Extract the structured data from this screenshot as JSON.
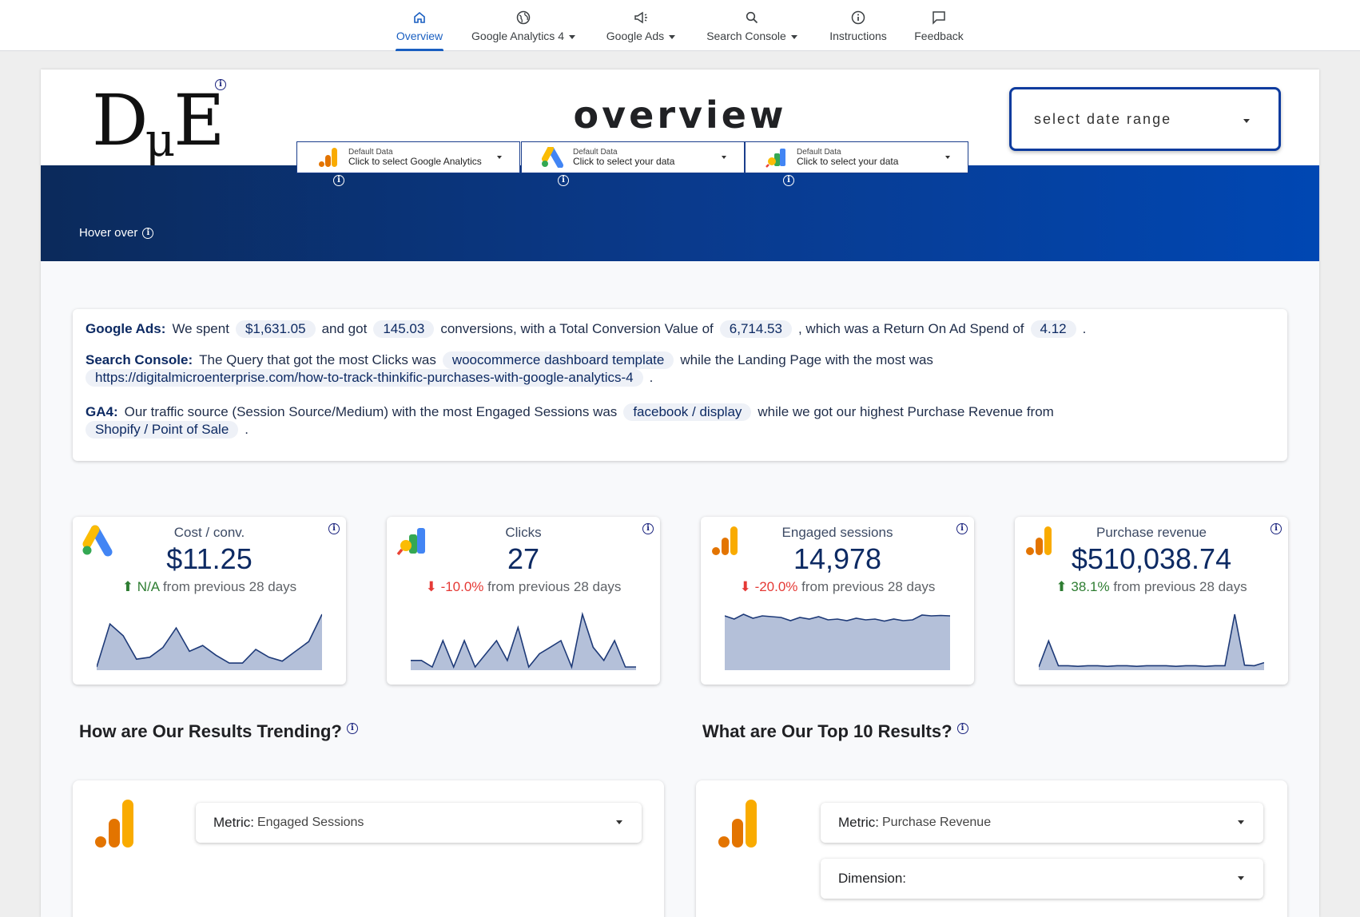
{
  "nav": {
    "items": [
      {
        "label": "Overview",
        "icon": "home-icon",
        "caret": false,
        "active": true
      },
      {
        "label": "Google Analytics 4",
        "icon": "globe-icon",
        "caret": true,
        "active": false
      },
      {
        "label": "Google Ads",
        "icon": "megaphone-icon",
        "caret": true,
        "active": false
      },
      {
        "label": "Search Console",
        "icon": "search-icon",
        "caret": true,
        "active": false
      },
      {
        "label": "Instructions",
        "icon": "info-icon",
        "caret": false,
        "active": false
      },
      {
        "label": "Feedback",
        "icon": "feedback-icon",
        "caret": false,
        "active": false
      }
    ]
  },
  "header": {
    "logo_text_d": "D",
    "logo_text_mu": "μ",
    "logo_text_e": "E",
    "title": "overview",
    "date_range_label": "select date range"
  },
  "data_sources": [
    {
      "title": "Default Data",
      "subtitle": "Click to select Google Analytics",
      "logo": "google-analytics-logo"
    },
    {
      "title": "Default Data",
      "subtitle": "Click to select your data",
      "logo": "google-ads-logo"
    },
    {
      "title": "Default Data",
      "subtitle": "Click to select your data",
      "logo": "search-console-logo"
    }
  ],
  "banner": {
    "hover_label": "Hover over"
  },
  "summary": {
    "ads": {
      "label": "Google Ads:",
      "t1": "We spent",
      "spend": "$1,631.05",
      "t2": "and got",
      "conversions": "145.03",
      "t3": "conversions, with a Total Conversion Value of",
      "conv_value": "6,714.53",
      "t4": ", which was a Return On Ad Spend of",
      "roas": "4.12",
      "t5": "."
    },
    "sc": {
      "label": "Search Console:",
      "t1": "The Query that got the most Clicks was",
      "query": "woocommerce dashboard template",
      "t2": "while the Landing Page with the most was",
      "landing": "https://digitalmicroenterprise.com/how-to-track-thinkific-purchases-with-google-analytics-4",
      "t3": "."
    },
    "ga4": {
      "label": "GA4:",
      "t1": "Our traffic source (Session Source/Medium) with the most Engaged Sessions was",
      "source": "facebook / display",
      "t2": "while we got our highest Purchase Revenue from",
      "revenue_source": "Shopify / Point of Sale",
      "t3": "."
    }
  },
  "kpis": [
    {
      "label": "Cost / conv.",
      "value": "$11.25",
      "delta": "N/A",
      "direction": "up",
      "suffix": "from previous 28 days",
      "logo": "google-ads-logo",
      "series": [
        0,
        22,
        16,
        4,
        5,
        10,
        20,
        8,
        11,
        6,
        2,
        2,
        9,
        5,
        3,
        8,
        13,
        27
      ]
    },
    {
      "label": "Clicks",
      "value": "27",
      "delta": "-10.0%",
      "direction": "down",
      "suffix": "from previous 28 days",
      "logo": "search-console-logo",
      "series": [
        1,
        1,
        0,
        4,
        0,
        4,
        0,
        2,
        4,
        1,
        6,
        0,
        2,
        3,
        4,
        0,
        8,
        3,
        1,
        4,
        0,
        0
      ]
    },
    {
      "label": "Engaged sessions",
      "value": "14,978",
      "delta": "-20.0%",
      "direction": "down",
      "suffix": "from previous 28 days",
      "logo": "google-analytics-logo",
      "series": [
        640,
        600,
        660,
        610,
        640,
        630,
        620,
        580,
        620,
        600,
        630,
        590,
        600,
        580,
        610,
        590,
        600,
        575,
        600,
        580,
        590,
        650,
        640,
        645,
        640
      ]
    },
    {
      "label": "Purchase revenue",
      "value": "$510,038.74",
      "delta": "38.1%",
      "direction": "up",
      "suffix": "from previous 28 days",
      "logo": "google-analytics-logo",
      "series": [
        0,
        42,
        2,
        2,
        1,
        2,
        2,
        1,
        2,
        2,
        1,
        2,
        2,
        2,
        1,
        2,
        2,
        1,
        2,
        2,
        85,
        3,
        2,
        7
      ]
    }
  ],
  "sections": {
    "trending_title": "How are Our Results Trending?",
    "top10_title": "What are Our Top 10 Results?"
  },
  "trending": {
    "metric_label": "Metric:",
    "metric_value": "Engaged Sessions"
  },
  "top10": {
    "metric_label": "Metric:",
    "metric_value": "Purchase Revenue",
    "dimension_label": "Dimension:"
  },
  "colors": {
    "accent": "#1a5fc1",
    "navy": "#0d2a63",
    "spark_fill": "#b4c0d9",
    "spark_line": "#1e3a78",
    "ga_orange": "#f9ab00",
    "ga_dark_orange": "#e37400"
  }
}
